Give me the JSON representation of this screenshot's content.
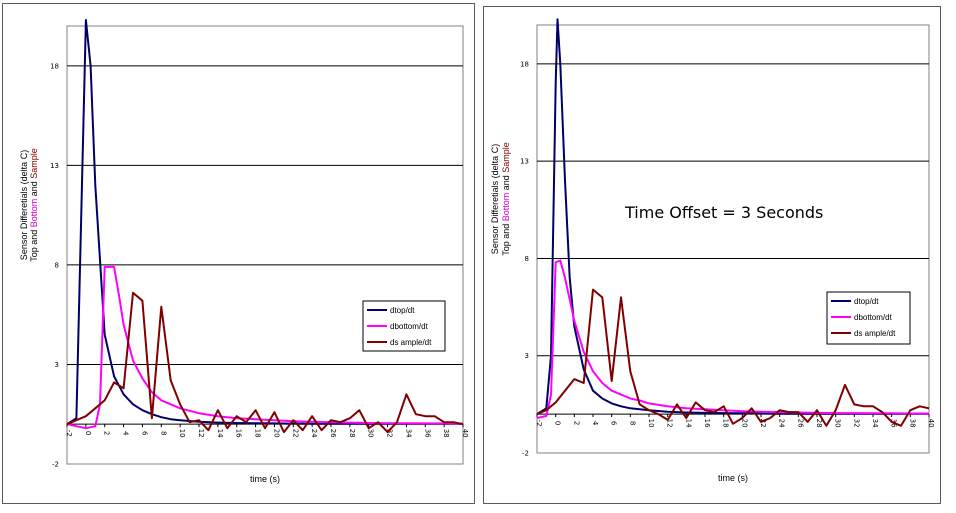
{
  "chart_data": [
    {
      "type": "line",
      "xlabel": "time (s)",
      "ylabel_line1": "Sensor Differetials (delta C)",
      "ylabel_line2_parts": [
        {
          "text": "Top and ",
          "color": "#000000"
        },
        {
          "text": "Bottom",
          "color": "#cc00cc"
        },
        {
          "text": " and ",
          "color": "#000000"
        },
        {
          "text": "Sample",
          "color": "#800000"
        }
      ],
      "xlim": [
        -2,
        40
      ],
      "ylim": [
        -2,
        20
      ],
      "yticks": [
        -2,
        3,
        8,
        13,
        18
      ],
      "xticks": [
        -2,
        0,
        2,
        4,
        6,
        8,
        10,
        12,
        14,
        16,
        18,
        20,
        22,
        24,
        26,
        28,
        30,
        32,
        34,
        36,
        38,
        40
      ],
      "grid": true,
      "legend_position": "right",
      "annotation": "",
      "series": [
        {
          "name": "dtop/dt",
          "color": "#000066",
          "x": [
            -2,
            -1,
            0,
            0.5,
            1,
            2,
            3,
            4,
            5,
            6,
            7,
            8,
            9,
            10,
            12,
            14,
            16,
            18,
            20,
            22,
            24,
            26,
            28,
            30,
            32,
            34,
            36,
            38,
            40
          ],
          "y": [
            0,
            0.3,
            20.3,
            18,
            12,
            4.5,
            2.4,
            1.5,
            1,
            0.7,
            0.5,
            0.35,
            0.25,
            0.2,
            0.12,
            0.08,
            0.06,
            0.05,
            0.04,
            0.03,
            0.02,
            0.02,
            0.02,
            0.02,
            0.02,
            0.02,
            0.02,
            0.02,
            0.02
          ]
        },
        {
          "name": "dbottom/dt",
          "color": "#ff00ff",
          "x": [
            -2,
            -1,
            0,
            1,
            1.5,
            2,
            3,
            3.5,
            4,
            5,
            6,
            7,
            8,
            9,
            10,
            12,
            14,
            16,
            18,
            20,
            22,
            24,
            26,
            28,
            30,
            32,
            34,
            36,
            38,
            40
          ],
          "y": [
            0,
            -0.1,
            -0.2,
            -0.1,
            1,
            7.9,
            7.9,
            6.5,
            5,
            3.2,
            2.3,
            1.6,
            1.2,
            1,
            0.8,
            0.55,
            0.4,
            0.3,
            0.25,
            0.2,
            0.15,
            0.12,
            0.1,
            0.08,
            0.06,
            0.05,
            0.05,
            0.04,
            0.04,
            0.03
          ]
        },
        {
          "name": "ds ample/dt",
          "color": "#800000",
          "x": [
            -2,
            -1,
            0,
            1,
            2,
            3,
            4,
            5,
            6,
            7,
            8,
            9,
            10,
            11,
            12,
            13,
            14,
            15,
            16,
            17,
            18,
            19,
            20,
            21,
            22,
            23,
            24,
            25,
            26,
            27,
            28,
            29,
            30,
            31,
            32,
            33,
            34,
            35,
            36,
            37,
            38,
            39,
            40
          ],
          "y": [
            0,
            0.2,
            0.4,
            0.8,
            1.2,
            2.1,
            1.8,
            6.6,
            6.2,
            0.3,
            5.9,
            2.2,
            1,
            0.1,
            0.2,
            -0.3,
            0.7,
            -0.2,
            0.4,
            0.1,
            0.7,
            -0.2,
            0.6,
            -0.4,
            0.2,
            -0.3,
            0.4,
            -0.3,
            0.2,
            0.1,
            0.3,
            0.7,
            -0.2,
            0.1,
            -0.4,
            0.1,
            1.5,
            0.5,
            0.4,
            0.4,
            0.1,
            0.1,
            0
          ]
        }
      ]
    },
    {
      "type": "line",
      "xlabel": "time (s)",
      "ylabel_line1": "Sensor Differetials (delta C)",
      "ylabel_line2_parts": [
        {
          "text": "Top and ",
          "color": "#000000"
        },
        {
          "text": "Bottom",
          "color": "#cc00cc"
        },
        {
          "text": " and ",
          "color": "#000000"
        },
        {
          "text": "Sample",
          "color": "#800000"
        }
      ],
      "xlim": [
        -2,
        40
      ],
      "ylim": [
        -2,
        20
      ],
      "yticks": [
        -2,
        3,
        8,
        13,
        18
      ],
      "xticks": [
        -2,
        0,
        2,
        4,
        6,
        8,
        10,
        12,
        14,
        16,
        18,
        20,
        22,
        24,
        26,
        28,
        30,
        32,
        34,
        36,
        38,
        40
      ],
      "grid": true,
      "legend_position": "right",
      "annotation": "Time Offset = 3 Seconds",
      "series": [
        {
          "name": "dtop/dt",
          "color": "#000066",
          "x": [
            -2,
            -1,
            -0.5,
            0,
            0.2,
            0.5,
            1,
            1.5,
            2,
            3,
            4,
            5,
            6,
            7,
            8,
            10,
            12,
            14,
            16,
            18,
            20,
            22,
            24,
            26,
            28,
            30,
            32,
            34,
            36,
            38,
            40
          ],
          "y": [
            0,
            0.3,
            3,
            17,
            20.3,
            18,
            12,
            7,
            4.5,
            2.3,
            1.2,
            0.8,
            0.55,
            0.4,
            0.3,
            0.2,
            0.12,
            0.08,
            0.06,
            0.05,
            0.04,
            0.03,
            0.02,
            0.02,
            0.02,
            0.02,
            0.02,
            0.02,
            0.02,
            0.02,
            0.02
          ]
        },
        {
          "name": "dbottom/dt",
          "color": "#ff00ff",
          "x": [
            -2,
            -1,
            -0.5,
            0,
            0.5,
            1,
            2,
            3,
            4,
            5,
            6,
            7,
            8,
            9,
            10,
            12,
            14,
            16,
            18,
            20,
            22,
            24,
            26,
            28,
            30,
            32,
            34,
            36,
            38,
            40
          ],
          "y": [
            -0.2,
            -0.1,
            1,
            7.8,
            7.9,
            7,
            4.8,
            3.2,
            2.2,
            1.6,
            1.2,
            1,
            0.8,
            0.7,
            0.55,
            0.4,
            0.3,
            0.25,
            0.2,
            0.15,
            0.12,
            0.1,
            0.08,
            0.06,
            0.05,
            0.05,
            0.04,
            0.04,
            0.03,
            0.03
          ]
        },
        {
          "name": "ds ample/dt",
          "color": "#800000",
          "x": [
            -2,
            -1,
            0,
            1,
            2,
            3,
            4,
            5,
            6,
            7,
            8,
            9,
            10,
            11,
            12,
            13,
            14,
            15,
            16,
            17,
            18,
            19,
            20,
            21,
            22,
            23,
            24,
            25,
            26,
            27,
            28,
            29,
            30,
            31,
            32,
            33,
            34,
            35,
            36,
            37,
            38,
            39,
            40
          ],
          "y": [
            0,
            0.2,
            0.6,
            1.2,
            1.8,
            1.6,
            6.4,
            6,
            1.7,
            6,
            2.2,
            0.5,
            0.2,
            0,
            -0.3,
            0.5,
            -0.2,
            0.6,
            0.2,
            0.1,
            0.4,
            -0.5,
            -0.2,
            0.3,
            -0.4,
            -0.2,
            0.2,
            0.1,
            0.1,
            -0.4,
            0.2,
            -0.6,
            0.2,
            1.5,
            0.5,
            0.4,
            0.4,
            0.1,
            -0.4,
            -0.6,
            0.2,
            0.4,
            0.3
          ]
        }
      ]
    }
  ]
}
